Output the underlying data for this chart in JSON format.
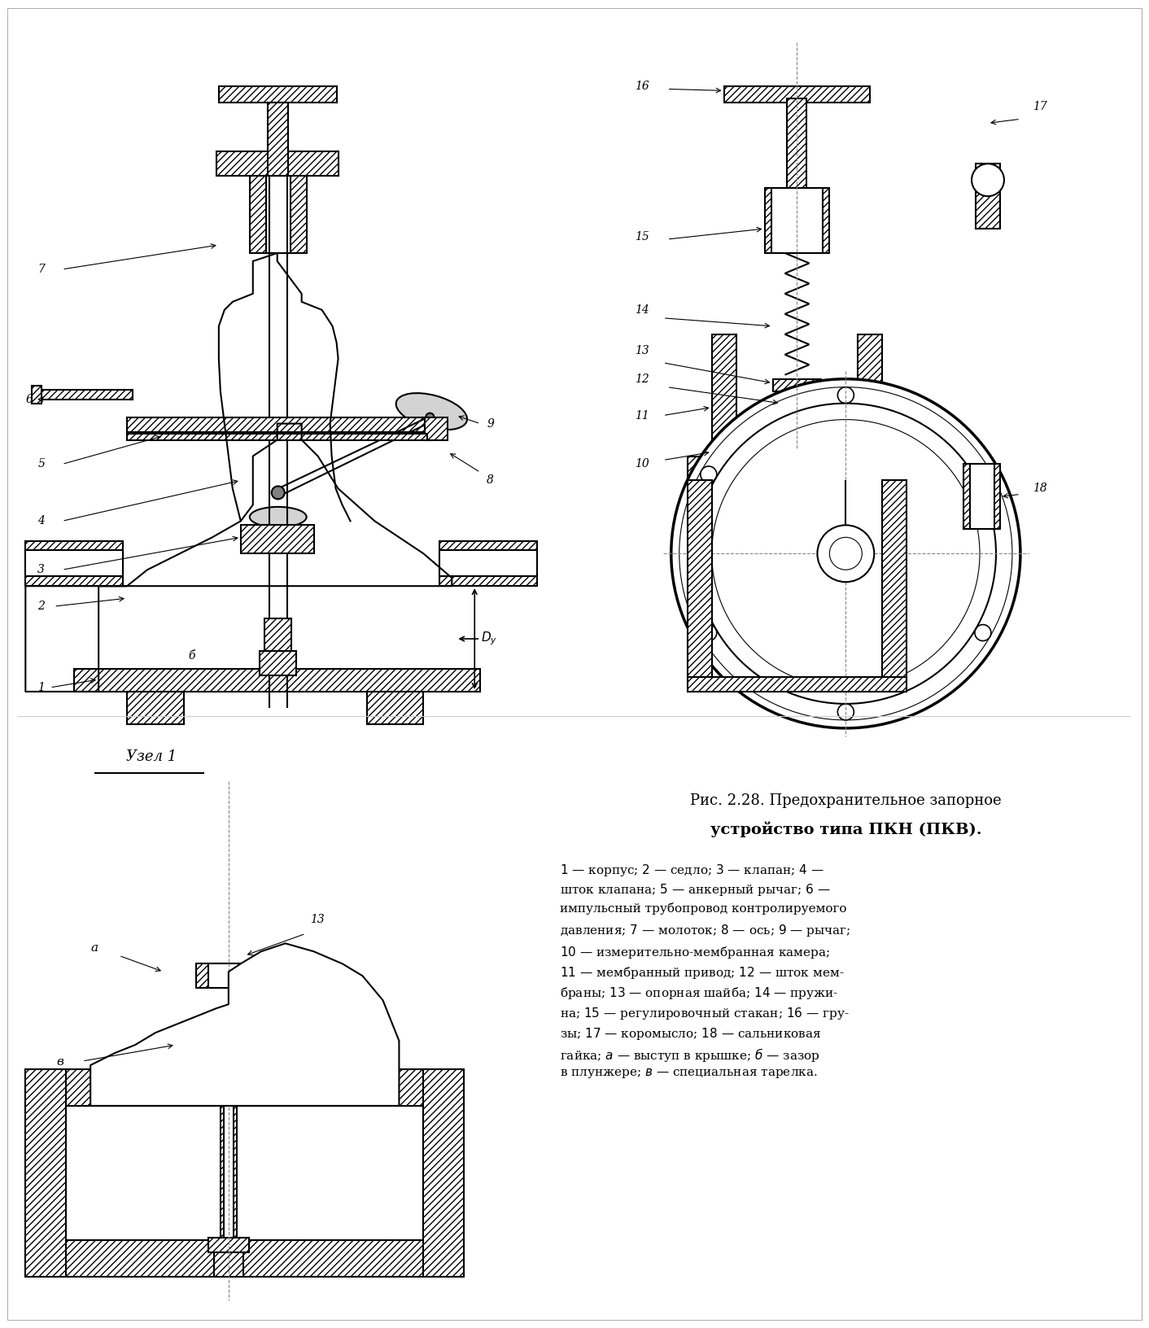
{
  "bg_color": "#ffffff",
  "line_color": "#000000",
  "hatch_color": "#000000",
  "fig_width": 14.12,
  "fig_height": 16.32,
  "title_text": "Рис. 2.28. Предохранительное запорное",
  "title_line2": "устройство типа ПКН (ПКВ).",
  "caption": "1 — корпус; 2 — седло; 3 — клапан; 4 —\nшток клапана; 5 — анкерный рычаг; 6 —\nимпульсный трубопровод контролируемого\nдавления; 7 — молоток; 8 — ось; 9 — рычаг;\n10 — измерительно-мембранная камера;\n11 — мембранный привод; 12 — шток мем-\nбраны; 13 — опорная шайба; 14 — пружи-\nна; 15 — регулировочный стакан; 16 — гру-\nзы; 17 — коромысло; 18 — сальниковая\nгайка; а — выступ в крышке; б — зазор\nв плунжере; в — специальная тарелка."
}
